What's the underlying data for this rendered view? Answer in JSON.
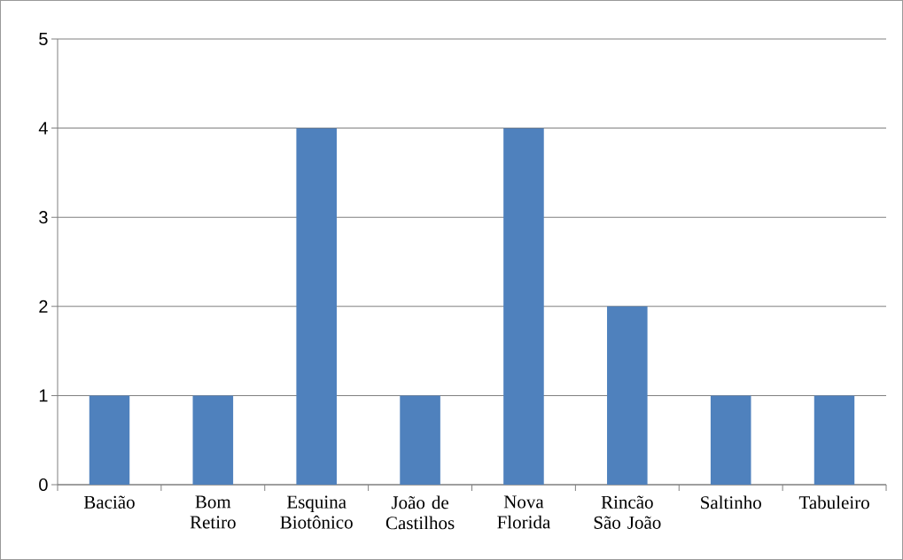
{
  "chart_data": {
    "type": "bar",
    "categories": [
      "Bacião",
      "Bom Retiro",
      "Esquina Biotônico",
      "João de Castilhos",
      "Nova Florida",
      "Rincão São João",
      "Saltinho",
      "Tabuleiro"
    ],
    "values": [
      1,
      1,
      4,
      1,
      4,
      2,
      1,
      1
    ],
    "color": "#4f81bd",
    "ylim": [
      0,
      5
    ],
    "yticks": [
      0,
      1,
      2,
      3,
      4,
      5
    ],
    "grid": "y"
  }
}
